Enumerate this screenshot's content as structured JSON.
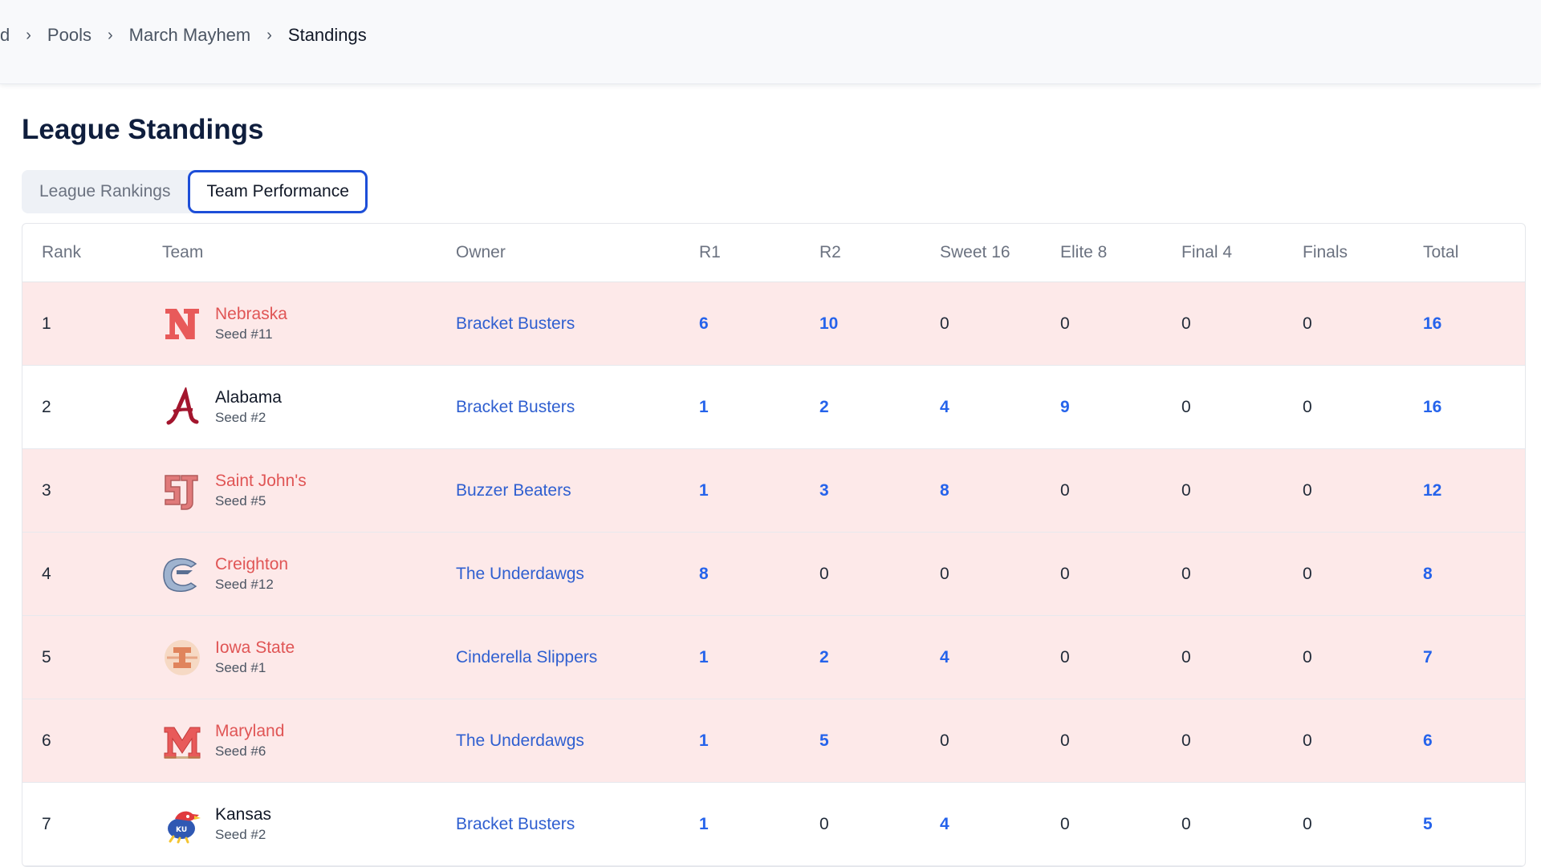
{
  "breadcrumb": {
    "items": [
      "d",
      "Pools",
      "March Mayhem",
      "Standings"
    ]
  },
  "page_title": "League Standings",
  "tabs": [
    {
      "label": "League Rankings",
      "active": false
    },
    {
      "label": "Team Performance",
      "active": true
    }
  ],
  "table": {
    "columns": [
      "Rank",
      "Team",
      "Owner",
      "R1",
      "R2",
      "Sweet 16",
      "Elite 8",
      "Final 4",
      "Finals",
      "Total"
    ],
    "rows": [
      {
        "rank": "1",
        "team": "Nebraska",
        "seed": "Seed #11",
        "owner": "Bracket Busters",
        "r1": "6",
        "r2": "10",
        "s16": "0",
        "e8": "0",
        "f4": "0",
        "finals": "0",
        "total": "16",
        "eliminated": true,
        "logo": "nebraska-n-logo"
      },
      {
        "rank": "2",
        "team": "Alabama",
        "seed": "Seed #2",
        "owner": "Bracket Busters",
        "r1": "1",
        "r2": "2",
        "s16": "4",
        "e8": "9",
        "f4": "0",
        "finals": "0",
        "total": "16",
        "eliminated": false,
        "logo": "alabama-a-logo"
      },
      {
        "rank": "3",
        "team": "Saint John's",
        "seed": "Seed #5",
        "owner": "Buzzer Beaters",
        "r1": "1",
        "r2": "3",
        "s16": "8",
        "e8": "0",
        "f4": "0",
        "finals": "0",
        "total": "12",
        "eliminated": true,
        "logo": "saint-johns-sj-logo"
      },
      {
        "rank": "4",
        "team": "Creighton",
        "seed": "Seed #12",
        "owner": "The Underdawgs",
        "r1": "8",
        "r2": "0",
        "s16": "0",
        "e8": "0",
        "f4": "0",
        "finals": "0",
        "total": "8",
        "eliminated": true,
        "logo": "creighton-bluejay-logo"
      },
      {
        "rank": "5",
        "team": "Iowa State",
        "seed": "Seed #1",
        "owner": "Cinderella Slippers",
        "r1": "1",
        "r2": "2",
        "s16": "4",
        "e8": "0",
        "f4": "0",
        "finals": "0",
        "total": "7",
        "eliminated": true,
        "logo": "iowa-state-logo"
      },
      {
        "rank": "6",
        "team": "Maryland",
        "seed": "Seed #6",
        "owner": "The Underdawgs",
        "r1": "1",
        "r2": "5",
        "s16": "0",
        "e8": "0",
        "f4": "0",
        "finals": "0",
        "total": "6",
        "eliminated": true,
        "logo": "maryland-m-logo"
      },
      {
        "rank": "7",
        "team": "Kansas",
        "seed": "Seed #2",
        "owner": "Bracket Busters",
        "r1": "1",
        "r2": "0",
        "s16": "4",
        "e8": "0",
        "f4": "0",
        "finals": "0",
        "total": "5",
        "eliminated": false,
        "logo": "kansas-jayhawk-logo"
      }
    ]
  },
  "colors": {
    "accent_blue": "#2563eb",
    "eliminated_row_bg": "#fde9e9",
    "eliminated_team_text": "#e05555",
    "title_navy": "#0f1e3d",
    "tab_active_border": "#1d4ed8"
  }
}
